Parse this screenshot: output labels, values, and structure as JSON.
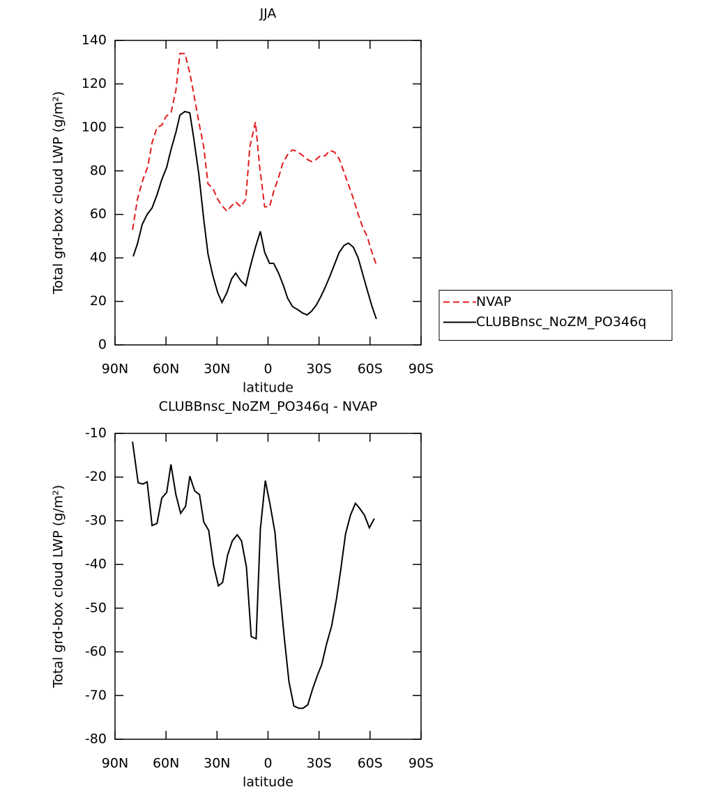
{
  "chart_data": [
    {
      "type": "line",
      "title": "JJA",
      "xlabel": "latitude",
      "ylabel": "Total grd-box cloud LWP (g/m²)",
      "xlim": [
        90,
        -90
      ],
      "xticks": [
        {
          "value": 90,
          "label": "90N"
        },
        {
          "value": 60,
          "label": "60N"
        },
        {
          "value": 30,
          "label": "30N"
        },
        0,
        {
          "value": -30,
          "label": "30S"
        },
        {
          "value": -60,
          "label": "60S"
        },
        {
          "value": -90,
          "label": "90S"
        }
      ],
      "ylim": [
        0,
        140
      ],
      "yticks": [
        0,
        20,
        40,
        60,
        80,
        100,
        120,
        140
      ],
      "legend": "outside right",
      "series": [
        {
          "name": "NVAP",
          "color": "#e41a1c",
          "linestyle": "dashed",
          "x": [
            79.7,
            76.8,
            73.6,
            70.7,
            68.2,
            65.3,
            62.5,
            60,
            57,
            54.2,
            51.8,
            48.9,
            46,
            43.6,
            40.7,
            37.8,
            35.3,
            32.5,
            29.6,
            27.1,
            24.2,
            21.4,
            19,
            16,
            13.1,
            10.7,
            7.4,
            4.9,
            2,
            -0.9,
            -3.3,
            -6.2,
            -8.6,
            -11.5,
            -14.4,
            -16.9,
            -19.7,
            -22.6,
            -25.5,
            -27.9,
            -30.8,
            -33.7,
            -36.2,
            -39,
            -41.9,
            -44.4,
            -47.3,
            -50.2,
            -52.6,
            -55.5,
            -58.4,
            -60.8,
            -63.7
          ],
          "values": [
            52.9,
            67,
            76,
            82,
            93,
            100,
            101,
            105,
            107,
            117,
            134,
            134,
            125,
            115,
            102.5,
            91,
            74,
            72,
            67,
            64,
            61.5,
            64,
            65.7,
            63.5,
            67,
            91,
            102.5,
            81.7,
            63.5,
            63.5,
            70.5,
            77,
            83.3,
            87.5,
            89.7,
            89,
            87.5,
            85.5,
            84.3,
            85,
            87,
            87,
            89.4,
            88.7,
            85.5,
            80,
            73.7,
            67.3,
            61,
            54.5,
            49.7,
            43.3,
            36.8
          ]
        },
        {
          "name": "CLUBBnsc_NoZM_PO346q",
          "color": "#000000",
          "linestyle": "solid",
          "x": [
            79.3,
            76.8,
            74,
            71.1,
            68.2,
            65.3,
            62.5,
            59.6,
            57.1,
            54.2,
            51.8,
            48.9,
            46,
            43.6,
            40.7,
            37.8,
            35.3,
            32.5,
            29.6,
            27.1,
            24.2,
            21.4,
            19,
            16,
            13.1,
            10.7,
            7.4,
            4.5,
            2,
            -0.9,
            -3.3,
            -6.2,
            -9.1,
            -11.5,
            -14.4,
            -17.3,
            -20.2,
            -23,
            -25.5,
            -28.4,
            -31.2,
            -33.7,
            -36.6,
            -39.5,
            -41.9,
            -44.8,
            -47.3,
            -50.2,
            -53,
            -55.9,
            -58.8,
            -61.2,
            -63.7
          ],
          "values": [
            40.7,
            46.5,
            55.4,
            60,
            63,
            69,
            76,
            81.7,
            89.7,
            97.7,
            105.7,
            107.3,
            106.7,
            94.5,
            78.5,
            57.7,
            41.7,
            32,
            24,
            19.5,
            24,
            30.4,
            33,
            29.5,
            27.2,
            35.2,
            44.9,
            52.2,
            42.6,
            37.5,
            37.5,
            33,
            27.2,
            21.5,
            17.6,
            16.3,
            14.7,
            13.8,
            15.4,
            18.3,
            22.4,
            26.6,
            32,
            37.8,
            42.6,
            45.8,
            46.8,
            44.9,
            40,
            32,
            24,
            17.6,
            11.9
          ]
        }
      ]
    },
    {
      "type": "line",
      "title": "CLUBBnsc_NoZM_PO346q - NVAP",
      "xlabel": "latitude",
      "ylabel": "Total grd-box cloud LWP (g/m²)",
      "xlim": [
        90,
        -90
      ],
      "xticks": [
        {
          "value": 90,
          "label": "90N"
        },
        {
          "value": 60,
          "label": "60N"
        },
        {
          "value": 30,
          "label": "30N"
        },
        0,
        {
          "value": -30,
          "label": "30S"
        },
        {
          "value": -60,
          "label": "60S"
        },
        {
          "value": -90,
          "label": "90S"
        }
      ],
      "ylim": [
        -80,
        -10
      ],
      "yticks": [
        -80,
        -70,
        -60,
        -50,
        -40,
        -30,
        -20,
        -10
      ],
      "series": [
        {
          "color": "#000000",
          "linestyle": "solid",
          "x": [
            79.7,
            76.4,
            73.6,
            71.1,
            68.2,
            65.3,
            62.5,
            59.6,
            57.1,
            54.2,
            51.4,
            48.5,
            46,
            43.1,
            40.3,
            37.8,
            34.9,
            32,
            29.2,
            26.7,
            23.8,
            21,
            18.1,
            15.6,
            12.7,
            9.9,
            7,
            4.5,
            1.6,
            -1.2,
            -4.1,
            -6.6,
            -9.5,
            -12.3,
            -15.2,
            -18.1,
            -20.6,
            -23.4,
            -26.3,
            -29.2,
            -31.6,
            -34.5,
            -37.4,
            -40.3,
            -42.7,
            -45.6,
            -48.5,
            -51.4,
            -53.8,
            -56.7,
            -59.6,
            -62.5
          ],
          "values": [
            -11.9,
            -21.3,
            -21.6,
            -21.1,
            -31.1,
            -30.6,
            -24.8,
            -23.5,
            -17.1,
            -24,
            -28.3,
            -26.7,
            -19.8,
            -23.2,
            -24,
            -30.3,
            -32.2,
            -40.2,
            -44.9,
            -44.1,
            -37.9,
            -34.6,
            -33.2,
            -34.6,
            -40.6,
            -56.5,
            -57,
            -31.9,
            -20.8,
            -26.3,
            -32.7,
            -44.6,
            -56.5,
            -66.8,
            -72.4,
            -72.9,
            -72.9,
            -72.1,
            -68.4,
            -65.2,
            -62.9,
            -58.1,
            -54.1,
            -47.8,
            -41.4,
            -33,
            -28.7,
            -26,
            -27.1,
            -28.7,
            -31.6,
            -29.5
          ]
        }
      ]
    }
  ]
}
